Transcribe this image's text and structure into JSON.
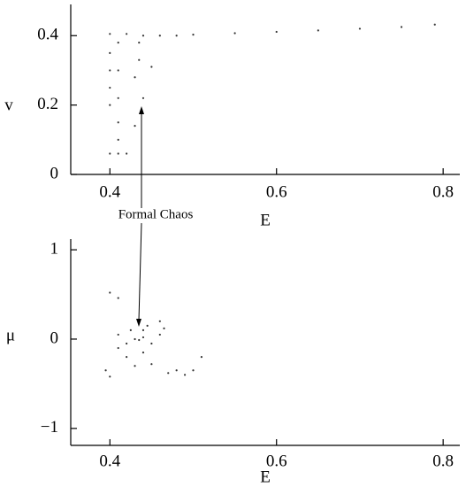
{
  "chart_data": [
    {
      "type": "scatter",
      "xlabel": "E",
      "ylabel": "v",
      "color": "#333333",
      "annotation": "Formal Chaos",
      "x": [
        0.4,
        0.42,
        0.44,
        0.46,
        0.48,
        0.5,
        0.55,
        0.6,
        0.65,
        0.7,
        0.75,
        0.79,
        0.4,
        0.4,
        0.4,
        0.4,
        0.41,
        0.41,
        0.41,
        0.41,
        0.41,
        0.41,
        0.4,
        0.42,
        0.43,
        0.44,
        0.45,
        0.435,
        0.435,
        0.43
      ],
      "y": [
        0.405,
        0.405,
        0.4,
        0.4,
        0.4,
        0.403,
        0.407,
        0.411,
        0.415,
        0.42,
        0.425,
        0.432,
        0.35,
        0.3,
        0.25,
        0.2,
        0.38,
        0.3,
        0.22,
        0.15,
        0.1,
        0.06,
        0.06,
        0.06,
        0.14,
        0.22,
        0.31,
        0.38,
        0.33,
        0.28
      ],
      "xlim": [
        0.353,
        0.82
      ],
      "ylim": [
        0,
        0.49
      ],
      "xticks": [
        0.4,
        0.6,
        0.8
      ],
      "yticks": [
        0,
        0.2,
        0.4
      ]
    },
    {
      "type": "scatter",
      "xlabel": "E",
      "ylabel": "μ",
      "color": "#333333",
      "x": [
        0.4,
        0.41,
        0.395,
        0.4,
        0.41,
        0.41,
        0.42,
        0.42,
        0.43,
        0.435,
        0.44,
        0.44,
        0.44,
        0.445,
        0.45,
        0.45,
        0.46,
        0.46,
        0.465,
        0.47,
        0.48,
        0.49,
        0.5,
        0.51,
        0.43,
        0.425
      ],
      "y": [
        0.52,
        0.46,
        -0.35,
        -0.42,
        -0.1,
        0.05,
        -0.05,
        -0.2,
        0.0,
        -0.01,
        0.02,
        0.1,
        -0.15,
        0.15,
        -0.05,
        -0.28,
        0.2,
        0.05,
        0.12,
        -0.38,
        -0.35,
        -0.4,
        -0.35,
        -0.2,
        -0.3,
        0.1
      ],
      "xlim": [
        0.353,
        0.82
      ],
      "ylim": [
        -1.19,
        1.12
      ],
      "xticks": [
        0.4,
        0.6,
        0.8
      ],
      "yticks": [
        {
          "value": -1,
          "label": "−1"
        },
        0,
        1
      ]
    }
  ]
}
